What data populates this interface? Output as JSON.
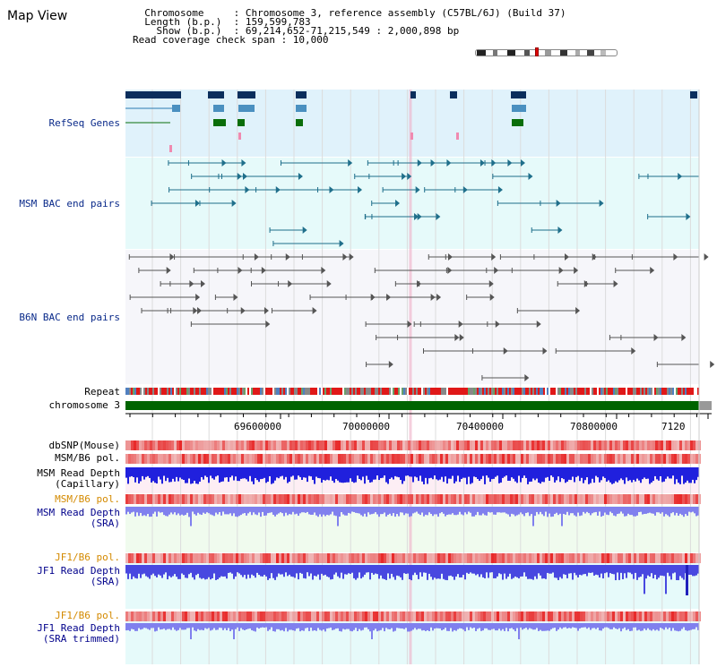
{
  "header": {
    "title": "Map View",
    "info_lines": [
      "  Chromosome     : Chromosome 3, reference assembly (C57BL/6J) (Build 37)",
      "  Length (b.p.)  : 159,599,783",
      "    Show (b.p.)  : 69,214,652-71,215,549 : 2,000,898 bp",
      "Read coverage check span : 10,000"
    ]
  },
  "tracks": {
    "refseq": "RefSeq Genes",
    "msm_bac": "MSM BAC end pairs",
    "b6n_bac": "B6N BAC end pairs",
    "repeat": "Repeat",
    "chromosome": "chromosome 3",
    "dbsnp": "dbSNP(Mouse)",
    "msm_b6_pol": "MSM/B6 pol.",
    "msm_depth_cap_1": "MSM Read Depth",
    "msm_depth_cap_2": "(Capillary)",
    "msm_b6_pol_2": "MSM/B6 pol.",
    "msm_depth_sra_1": "MSM Read Depth",
    "msm_depth_sra_2": "(SRA)",
    "jf1_b6_pol": "JF1/B6 pol.",
    "jf1_depth_sra_1": "JF1 Read Depth",
    "jf1_depth_sra_2": "(SRA)",
    "jf1_b6_pol_2": "JF1/B6 pol.",
    "jf1_depth_trim_1": "JF1 Read Depth",
    "jf1_depth_trim_2": "(SRA trimmed)"
  },
  "axis": {
    "ticks": [
      "69600000",
      "70000000",
      "70400000",
      "70800000",
      "7120"
    ]
  },
  "colors": {
    "refseq_bg": "#e0f2fb",
    "msm_bg": "#e6fafa",
    "b6n_bg": "#f6f6fa",
    "msm_line": "#1f6f8b",
    "b6n_line": "#555555",
    "chromosome_bar": "#006400",
    "depth_capillary": "#2020dd",
    "depth_sra": "#8080ee",
    "pol_red": "#e83030",
    "label_orange": "#d48a00",
    "label_navy": "#00008b"
  }
}
